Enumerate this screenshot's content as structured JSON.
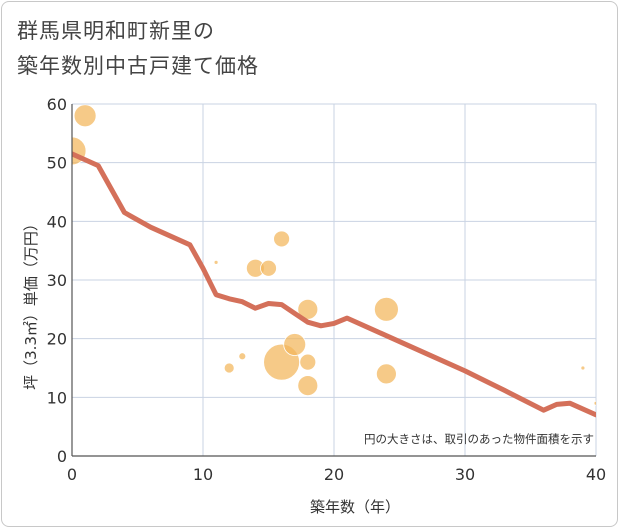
{
  "title_lines": [
    "群馬県明和町新里の",
    "築年数別中古戸建て価格"
  ],
  "chart_data": {
    "type": "scatter",
    "title": "群馬県明和町新里の築年数別中古戸建て価格",
    "xlabel": "築年数（年）",
    "ylabel": "坪（3.3㎡）単価（万円）",
    "xlim": [
      0,
      40
    ],
    "ylim": [
      0,
      60
    ],
    "xticks": [
      0,
      10,
      20,
      30,
      40
    ],
    "yticks": [
      0,
      10,
      20,
      30,
      40,
      50,
      60
    ],
    "grid": true,
    "note": "円の大きさは、取引のあった物件面積を示す",
    "colors": {
      "bubble": "#f2b55a",
      "trend": "#d4705a",
      "grid": "#c9d3e3",
      "axis": "#555555"
    },
    "bubbles": [
      {
        "x": 0,
        "y": 52,
        "size": 14
      },
      {
        "x": 1,
        "y": 58,
        "size": 11
      },
      {
        "x": 11,
        "y": 33,
        "size": 2
      },
      {
        "x": 12,
        "y": 15,
        "size": 5
      },
      {
        "x": 13,
        "y": 17,
        "size": 3.5
      },
      {
        "x": 14,
        "y": 32,
        "size": 9
      },
      {
        "x": 15,
        "y": 32,
        "size": 8
      },
      {
        "x": 16,
        "y": 37,
        "size": 8
      },
      {
        "x": 16,
        "y": 16,
        "size": 18
      },
      {
        "x": 17,
        "y": 19,
        "size": 11
      },
      {
        "x": 18,
        "y": 25,
        "size": 10
      },
      {
        "x": 18,
        "y": 16,
        "size": 8
      },
      {
        "x": 18,
        "y": 12,
        "size": 10
      },
      {
        "x": 24,
        "y": 25,
        "size": 12
      },
      {
        "x": 24,
        "y": 14,
        "size": 10
      },
      {
        "x": 39,
        "y": 15,
        "size": 2
      },
      {
        "x": 40,
        "y": 9,
        "size": 2
      }
    ],
    "trend": {
      "name": "trend",
      "x": [
        0,
        2,
        4,
        6,
        9,
        10,
        11,
        12,
        13,
        14,
        15,
        16,
        17,
        18,
        19,
        20,
        21,
        24,
        27,
        30,
        33,
        36,
        37,
        38,
        40
      ],
      "y": [
        51.5,
        49.5,
        41.5,
        39,
        36,
        32,
        27.5,
        26.8,
        26.3,
        25.2,
        26,
        25.8,
        24.3,
        22.8,
        22.2,
        22.6,
        23.5,
        20.5,
        17.5,
        14.5,
        11.2,
        7.8,
        8.8,
        9,
        7
      ]
    }
  }
}
